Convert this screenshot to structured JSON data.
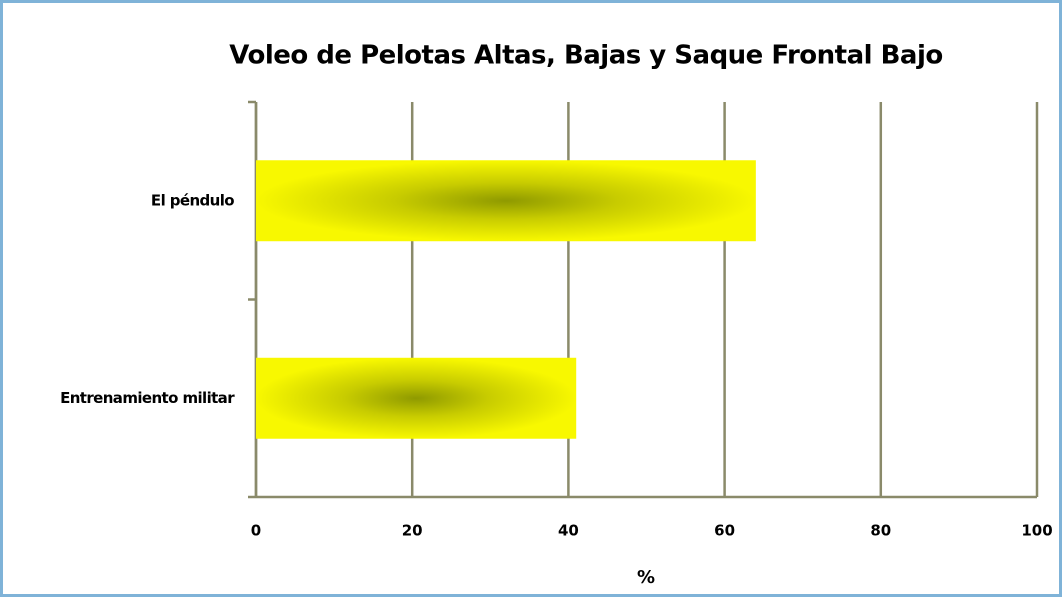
{
  "chart_data": {
    "type": "bar",
    "orientation": "horizontal",
    "title": "Voleo de Pelotas Altas, Bajas y Saque Frontal Bajo",
    "categories": [
      "El péndulo",
      "Entrenamiento militar"
    ],
    "values": [
      64,
      41
    ],
    "color": "#f5f500",
    "xlabel": "%",
    "xlim": [
      0,
      100
    ],
    "xticks": [
      0,
      20,
      40,
      60,
      80,
      100
    ],
    "grid": true
  }
}
